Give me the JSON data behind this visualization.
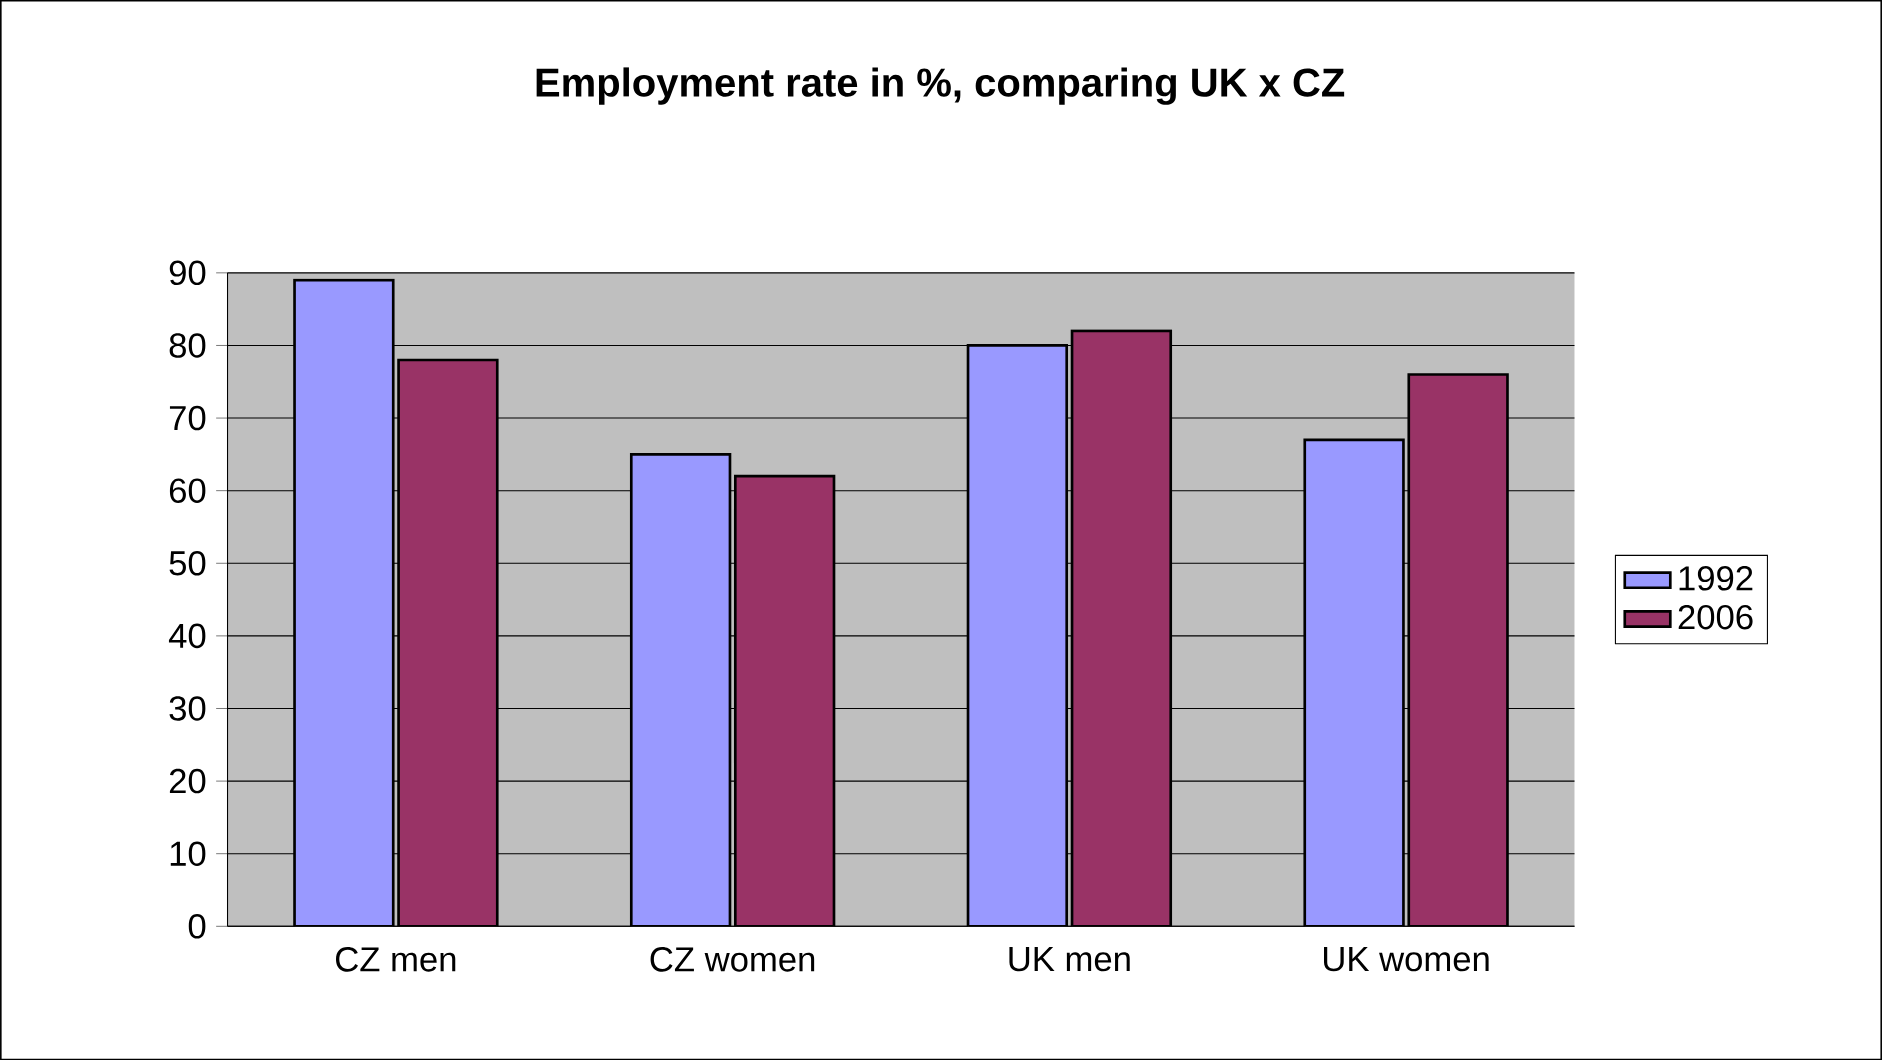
{
  "chart_data": {
    "type": "bar",
    "title": "Employment rate in %, comparing UK x CZ",
    "categories": [
      "CZ men",
      "CZ women",
      "UK men",
      "UK women"
    ],
    "series": [
      {
        "name": "1992",
        "color": "#9999ff",
        "values": [
          89,
          65,
          80,
          67
        ]
      },
      {
        "name": "2006",
        "color": "#993366",
        "values": [
          78,
          62,
          82,
          76
        ]
      }
    ],
    "ylim": [
      0,
      90
    ],
    "yticks": [
      0,
      10,
      20,
      30,
      40,
      50,
      60,
      70,
      80,
      90
    ],
    "grid": "y",
    "legend": "right"
  }
}
